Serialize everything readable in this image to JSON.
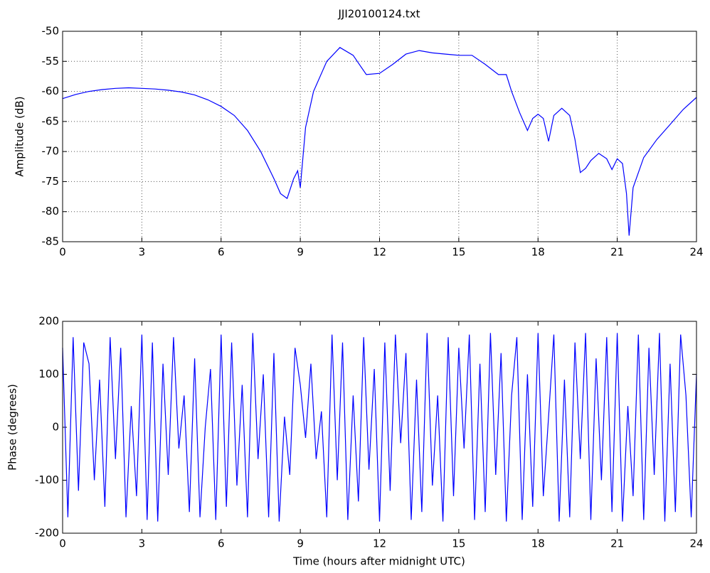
{
  "chart_data": [
    {
      "type": "line",
      "title": "JJI20100124.txt",
      "ylabel": "Amplitude (dB)",
      "xlim": [
        0,
        24
      ],
      "xticks": [
        0,
        3,
        6,
        9,
        12,
        15,
        18,
        21,
        24
      ],
      "ylim": [
        -85,
        -50
      ],
      "yticks": [
        -85,
        -80,
        -75,
        -70,
        -65,
        -60,
        -55,
        -50
      ],
      "grid": true,
      "series": [
        {
          "name": "Amplitude",
          "color": "#0000ff",
          "x": [
            0,
            0.5,
            1,
            1.5,
            2,
            2.5,
            3,
            3.5,
            4,
            4.5,
            5,
            5.5,
            6,
            6.5,
            7,
            7.5,
            8,
            8.25,
            8.5,
            8.75,
            8.9,
            9,
            9.2,
            9.5,
            10,
            10.5,
            11,
            11.5,
            12,
            12.5,
            13,
            13.5,
            14,
            14.5,
            15,
            15.5,
            16,
            16.5,
            16.8,
            17,
            17.3,
            17.6,
            17.8,
            18,
            18.2,
            18.4,
            18.6,
            18.9,
            19.2,
            19.4,
            19.6,
            19.8,
            20,
            20.3,
            20.6,
            20.8,
            21,
            21.2,
            21.35,
            21.45,
            21.6,
            22,
            22.5,
            23,
            23.5,
            24
          ],
          "values": [
            -61.2,
            -60.5,
            -60,
            -59.7,
            -59.5,
            -59.4,
            -59.5,
            -59.6,
            -59.8,
            -60.1,
            -60.6,
            -61.4,
            -62.5,
            -64,
            -66.5,
            -70,
            -74.5,
            -77,
            -77.8,
            -74.5,
            -73.2,
            -76,
            -66,
            -60,
            -55,
            -52.7,
            -54,
            -57.2,
            -57,
            -55.5,
            -53.8,
            -53.2,
            -53.6,
            -53.8,
            -54,
            -54,
            -55.5,
            -57.2,
            -57.2,
            -60,
            -63.5,
            -66.5,
            -64.5,
            -63.8,
            -64.5,
            -68.3,
            -64,
            -62.8,
            -64,
            -68,
            -73.5,
            -72.8,
            -71.5,
            -70.3,
            -71.2,
            -73,
            -71.2,
            -72,
            -77,
            -84,
            -76,
            -71,
            -68,
            -65.5,
            -63,
            -61
          ]
        }
      ]
    },
    {
      "type": "line",
      "xlabel": "Time (hours after midnight UTC)",
      "ylabel": "Phase (degrees)",
      "xlim": [
        0,
        24
      ],
      "xticks": [
        0,
        3,
        6,
        9,
        12,
        15,
        18,
        21,
        24
      ],
      "ylim": [
        -200,
        200
      ],
      "yticks": [
        -200,
        -100,
        0,
        100,
        200
      ],
      "grid": false,
      "series": [
        {
          "name": "Phase",
          "color": "#0000ff",
          "x": [
            0,
            0.2,
            0.4,
            0.6,
            0.8,
            1,
            1.2,
            1.4,
            1.6,
            1.8,
            2,
            2.2,
            2.4,
            2.6,
            2.8,
            3,
            3.2,
            3.4,
            3.6,
            3.8,
            4,
            4.2,
            4.4,
            4.6,
            4.8,
            5,
            5.2,
            5.4,
            5.6,
            5.8,
            6,
            6.2,
            6.4,
            6.6,
            6.8,
            7,
            7.2,
            7.4,
            7.6,
            7.8,
            8,
            8.2,
            8.4,
            8.6,
            8.8,
            9,
            9.2,
            9.4,
            9.6,
            9.8,
            10,
            10.2,
            10.4,
            10.6,
            10.8,
            11,
            11.2,
            11.4,
            11.6,
            11.8,
            12,
            12.2,
            12.4,
            12.6,
            12.8,
            13,
            13.2,
            13.4,
            13.6,
            13.8,
            14,
            14.2,
            14.4,
            14.6,
            14.8,
            15,
            15.2,
            15.4,
            15.6,
            15.8,
            16,
            16.2,
            16.4,
            16.6,
            16.8,
            17,
            17.2,
            17.4,
            17.6,
            17.8,
            18,
            18.2,
            18.4,
            18.6,
            18.8,
            19,
            19.2,
            19.4,
            19.6,
            19.8,
            20,
            20.2,
            20.4,
            20.6,
            20.8,
            21,
            21.2,
            21.4,
            21.6,
            21.8,
            22,
            22.2,
            22.4,
            22.6,
            22.8,
            23,
            23.2,
            23.4,
            23.6,
            23.8,
            24
          ],
          "values": [
            150,
            -170,
            170,
            -120,
            160,
            120,
            -100,
            90,
            -150,
            170,
            -60,
            150,
            -170,
            40,
            -130,
            175,
            -175,
            160,
            -178,
            120,
            -90,
            170,
            -40,
            60,
            -160,
            130,
            -170,
            0,
            110,
            -175,
            175,
            -150,
            160,
            -110,
            80,
            -170,
            178,
            -60,
            100,
            -170,
            140,
            -178,
            20,
            -90,
            150,
            80,
            -20,
            120,
            -60,
            30,
            -170,
            175,
            -100,
            160,
            -175,
            60,
            -140,
            170,
            -80,
            110,
            -178,
            160,
            -120,
            175,
            -30,
            140,
            -175,
            90,
            -160,
            178,
            -110,
            60,
            -178,
            170,
            -130,
            150,
            -40,
            175,
            -175,
            120,
            -160,
            178,
            -90,
            140,
            -178,
            60,
            170,
            -175,
            100,
            -150,
            178,
            -130,
            20,
            175,
            -178,
            90,
            -170,
            160,
            -60,
            178,
            -175,
            130,
            -100,
            170,
            -160,
            178,
            -178,
            40,
            -130,
            175,
            -175,
            150,
            -90,
            178,
            -178,
            120,
            -160,
            175,
            60,
            -170,
            100
          ]
        }
      ]
    }
  ]
}
